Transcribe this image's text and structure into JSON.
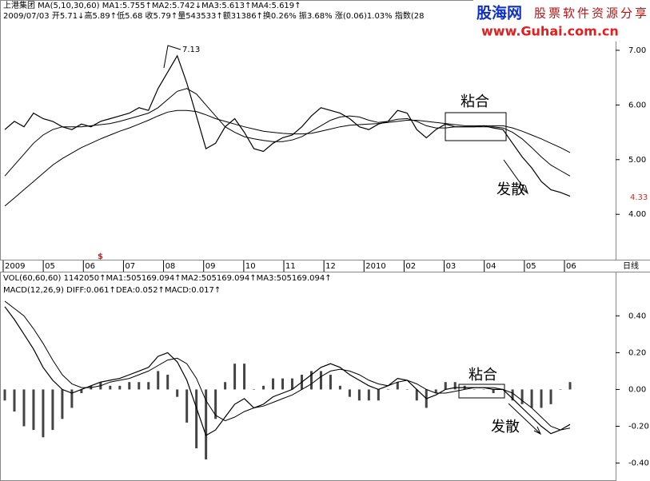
{
  "header": {
    "line1": "上港集团 MA(5,10,30,60) MA1:5.755↑MA2:5.742↓MA3:5.613↑MA4:5.619↑",
    "line2": "2009/07/03 开5.71↓高5.89↑低5.68 收5.79↑量543533↑额31386↑换0.26% 振3.68% 涨(0.06)1.03% 指数(28",
    "logo_main": "股海网",
    "logo_tag": "股票软件资源分享",
    "logo_url": "www.Guhai.com.cn"
  },
  "chart_data": [
    {
      "type": "line",
      "xlabels": [
        "2009",
        "05",
        "06",
        "07",
        "08",
        "09",
        "10",
        "11",
        "12",
        "2010",
        "02",
        "03",
        "04",
        "05",
        "06"
      ],
      "period_label": "日线",
      "ylim": [
        3.17,
        7.92
      ],
      "yticks": [
        {
          "value": 4,
          "label": "4.00"
        },
        {
          "value": 5,
          "label": "5.00"
        },
        {
          "value": 6,
          "label": "6.00"
        },
        {
          "value": 7,
          "label": "7.00"
        }
      ],
      "annotations": {
        "peak": "7.13",
        "converge": "粘合",
        "diverge": "发散",
        "last": "4.33",
        "marker": "$"
      },
      "series": [
        {
          "name": "收",
          "color": "#000000",
          "width": 1.2,
          "values": [
            5.55,
            5.7,
            5.6,
            5.85,
            5.75,
            5.7,
            5.6,
            5.55,
            5.65,
            5.6,
            5.7,
            5.75,
            5.8,
            5.85,
            5.95,
            5.9,
            6.3,
            6.6,
            6.9,
            6.4,
            5.8,
            5.2,
            5.3,
            5.6,
            5.75,
            5.5,
            5.2,
            5.15,
            5.3,
            5.4,
            5.45,
            5.6,
            5.8,
            5.95,
            5.9,
            5.85,
            5.75,
            5.6,
            5.55,
            5.65,
            5.7,
            5.9,
            5.85,
            5.55,
            5.4,
            5.55,
            5.65,
            5.6,
            5.6,
            5.6,
            5.62,
            5.58,
            5.55,
            5.3,
            5.05,
            4.85,
            4.6,
            4.45,
            4.4,
            4.33
          ]
        },
        {
          "name": "MA3",
          "color": "#000000",
          "width": 1,
          "values": [
            4.7,
            4.9,
            5.1,
            5.3,
            5.45,
            5.55,
            5.6,
            5.6,
            5.6,
            5.62,
            5.64,
            5.66,
            5.7,
            5.75,
            5.8,
            5.85,
            5.95,
            6.1,
            6.25,
            6.3,
            6.2,
            6.0,
            5.8,
            5.6,
            5.5,
            5.42,
            5.38,
            5.35,
            5.33,
            5.33,
            5.36,
            5.42,
            5.52,
            5.62,
            5.72,
            5.78,
            5.8,
            5.78,
            5.72,
            5.68,
            5.7,
            5.74,
            5.75,
            5.7,
            5.62,
            5.58,
            5.58,
            5.6,
            5.6,
            5.6,
            5.6,
            5.6,
            5.58,
            5.5,
            5.38,
            5.22,
            5.05,
            4.9,
            4.8,
            4.7
          ]
        },
        {
          "name": "MA4",
          "color": "#000000",
          "width": 1,
          "values": [
            4.15,
            4.3,
            4.45,
            4.6,
            4.75,
            4.9,
            5.02,
            5.12,
            5.22,
            5.3,
            5.38,
            5.45,
            5.52,
            5.58,
            5.65,
            5.72,
            5.8,
            5.87,
            5.9,
            5.9,
            5.88,
            5.82,
            5.75,
            5.7,
            5.65,
            5.6,
            5.56,
            5.52,
            5.5,
            5.48,
            5.47,
            5.47,
            5.48,
            5.52,
            5.56,
            5.6,
            5.63,
            5.64,
            5.65,
            5.66,
            5.68,
            5.7,
            5.72,
            5.72,
            5.7,
            5.68,
            5.66,
            5.64,
            5.62,
            5.62,
            5.62,
            5.62,
            5.62,
            5.58,
            5.52,
            5.45,
            5.38,
            5.3,
            5.22,
            5.13
          ]
        }
      ]
    },
    {
      "type": "line",
      "header1": "VOL(60,60,60) 1142050↑MA1:505169.094↑MA2:505169.094↑MA3:505169.094↑",
      "header2": "MACD(12,26,9) DIFF:0.061↑DEA:0.052↑MACD:0.017↑",
      "ylim": [
        -0.48,
        0.64
      ],
      "yticks": [
        {
          "value": 0.4,
          "label": "0.40"
        },
        {
          "value": 0.2,
          "label": "0.20"
        },
        {
          "value": 0,
          "label": "0.00"
        },
        {
          "value": -0.2,
          "label": "-0.20"
        },
        {
          "value": -0.4,
          "label": "-0.40"
        }
      ],
      "annotations": {
        "converge": "粘合",
        "diverge": "发散"
      },
      "series": [
        {
          "name": "MACD",
          "type": "bar",
          "color": "#444444",
          "values": [
            -0.06,
            -0.12,
            -0.2,
            -0.22,
            -0.26,
            -0.22,
            -0.16,
            -0.1,
            -0.02,
            0.02,
            0.04,
            0.02,
            0.02,
            0.04,
            0.04,
            0.04,
            0.1,
            0.08,
            -0.04,
            -0.18,
            -0.32,
            -0.38,
            -0.16,
            0.04,
            0.14,
            0.14,
            0.0,
            0.02,
            0.06,
            0.06,
            0.06,
            0.08,
            0.1,
            0.1,
            0.08,
            0.02,
            -0.04,
            -0.06,
            -0.06,
            -0.06,
            0.0,
            0.04,
            0.0,
            -0.06,
            -0.1,
            -0.02,
            0.04,
            0.04,
            0.02,
            0.0,
            0.0,
            -0.02,
            0.0,
            -0.06,
            -0.08,
            -0.1,
            -0.1,
            -0.08,
            0.0,
            0.04
          ]
        },
        {
          "name": "DIFF",
          "color": "#000000",
          "width": 1.2,
          "values": [
            0.45,
            0.38,
            0.3,
            0.22,
            0.12,
            0.05,
            0.0,
            -0.02,
            0.0,
            0.02,
            0.04,
            0.05,
            0.06,
            0.08,
            0.1,
            0.12,
            0.18,
            0.2,
            0.15,
            0.05,
            -0.1,
            -0.25,
            -0.22,
            -0.15,
            -0.08,
            -0.05,
            -0.1,
            -0.08,
            -0.04,
            -0.02,
            0.0,
            0.04,
            0.08,
            0.12,
            0.14,
            0.12,
            0.08,
            0.05,
            0.02,
            0.0,
            0.02,
            0.06,
            0.05,
            0.0,
            -0.05,
            -0.03,
            0.0,
            0.01,
            0.01,
            0.01,
            0.01,
            0.0,
            0.0,
            -0.05,
            -0.1,
            -0.15,
            -0.2,
            -0.24,
            -0.22,
            -0.19
          ]
        },
        {
          "name": "DEA",
          "color": "#000000",
          "width": 1,
          "values": [
            0.48,
            0.44,
            0.4,
            0.33,
            0.25,
            0.16,
            0.08,
            0.03,
            0.01,
            0.01,
            0.02,
            0.04,
            0.05,
            0.06,
            0.08,
            0.1,
            0.13,
            0.16,
            0.17,
            0.14,
            0.06,
            -0.06,
            -0.14,
            -0.17,
            -0.15,
            -0.12,
            -0.1,
            -0.09,
            -0.07,
            -0.05,
            -0.03,
            0.0,
            0.03,
            0.07,
            0.1,
            0.11,
            0.1,
            0.08,
            0.05,
            0.03,
            0.02,
            0.04,
            0.05,
            0.03,
            0.0,
            -0.02,
            -0.02,
            -0.01,
            0.0,
            0.01,
            0.01,
            0.01,
            0.0,
            -0.02,
            -0.06,
            -0.1,
            -0.15,
            -0.2,
            -0.22,
            -0.21
          ]
        }
      ]
    }
  ]
}
